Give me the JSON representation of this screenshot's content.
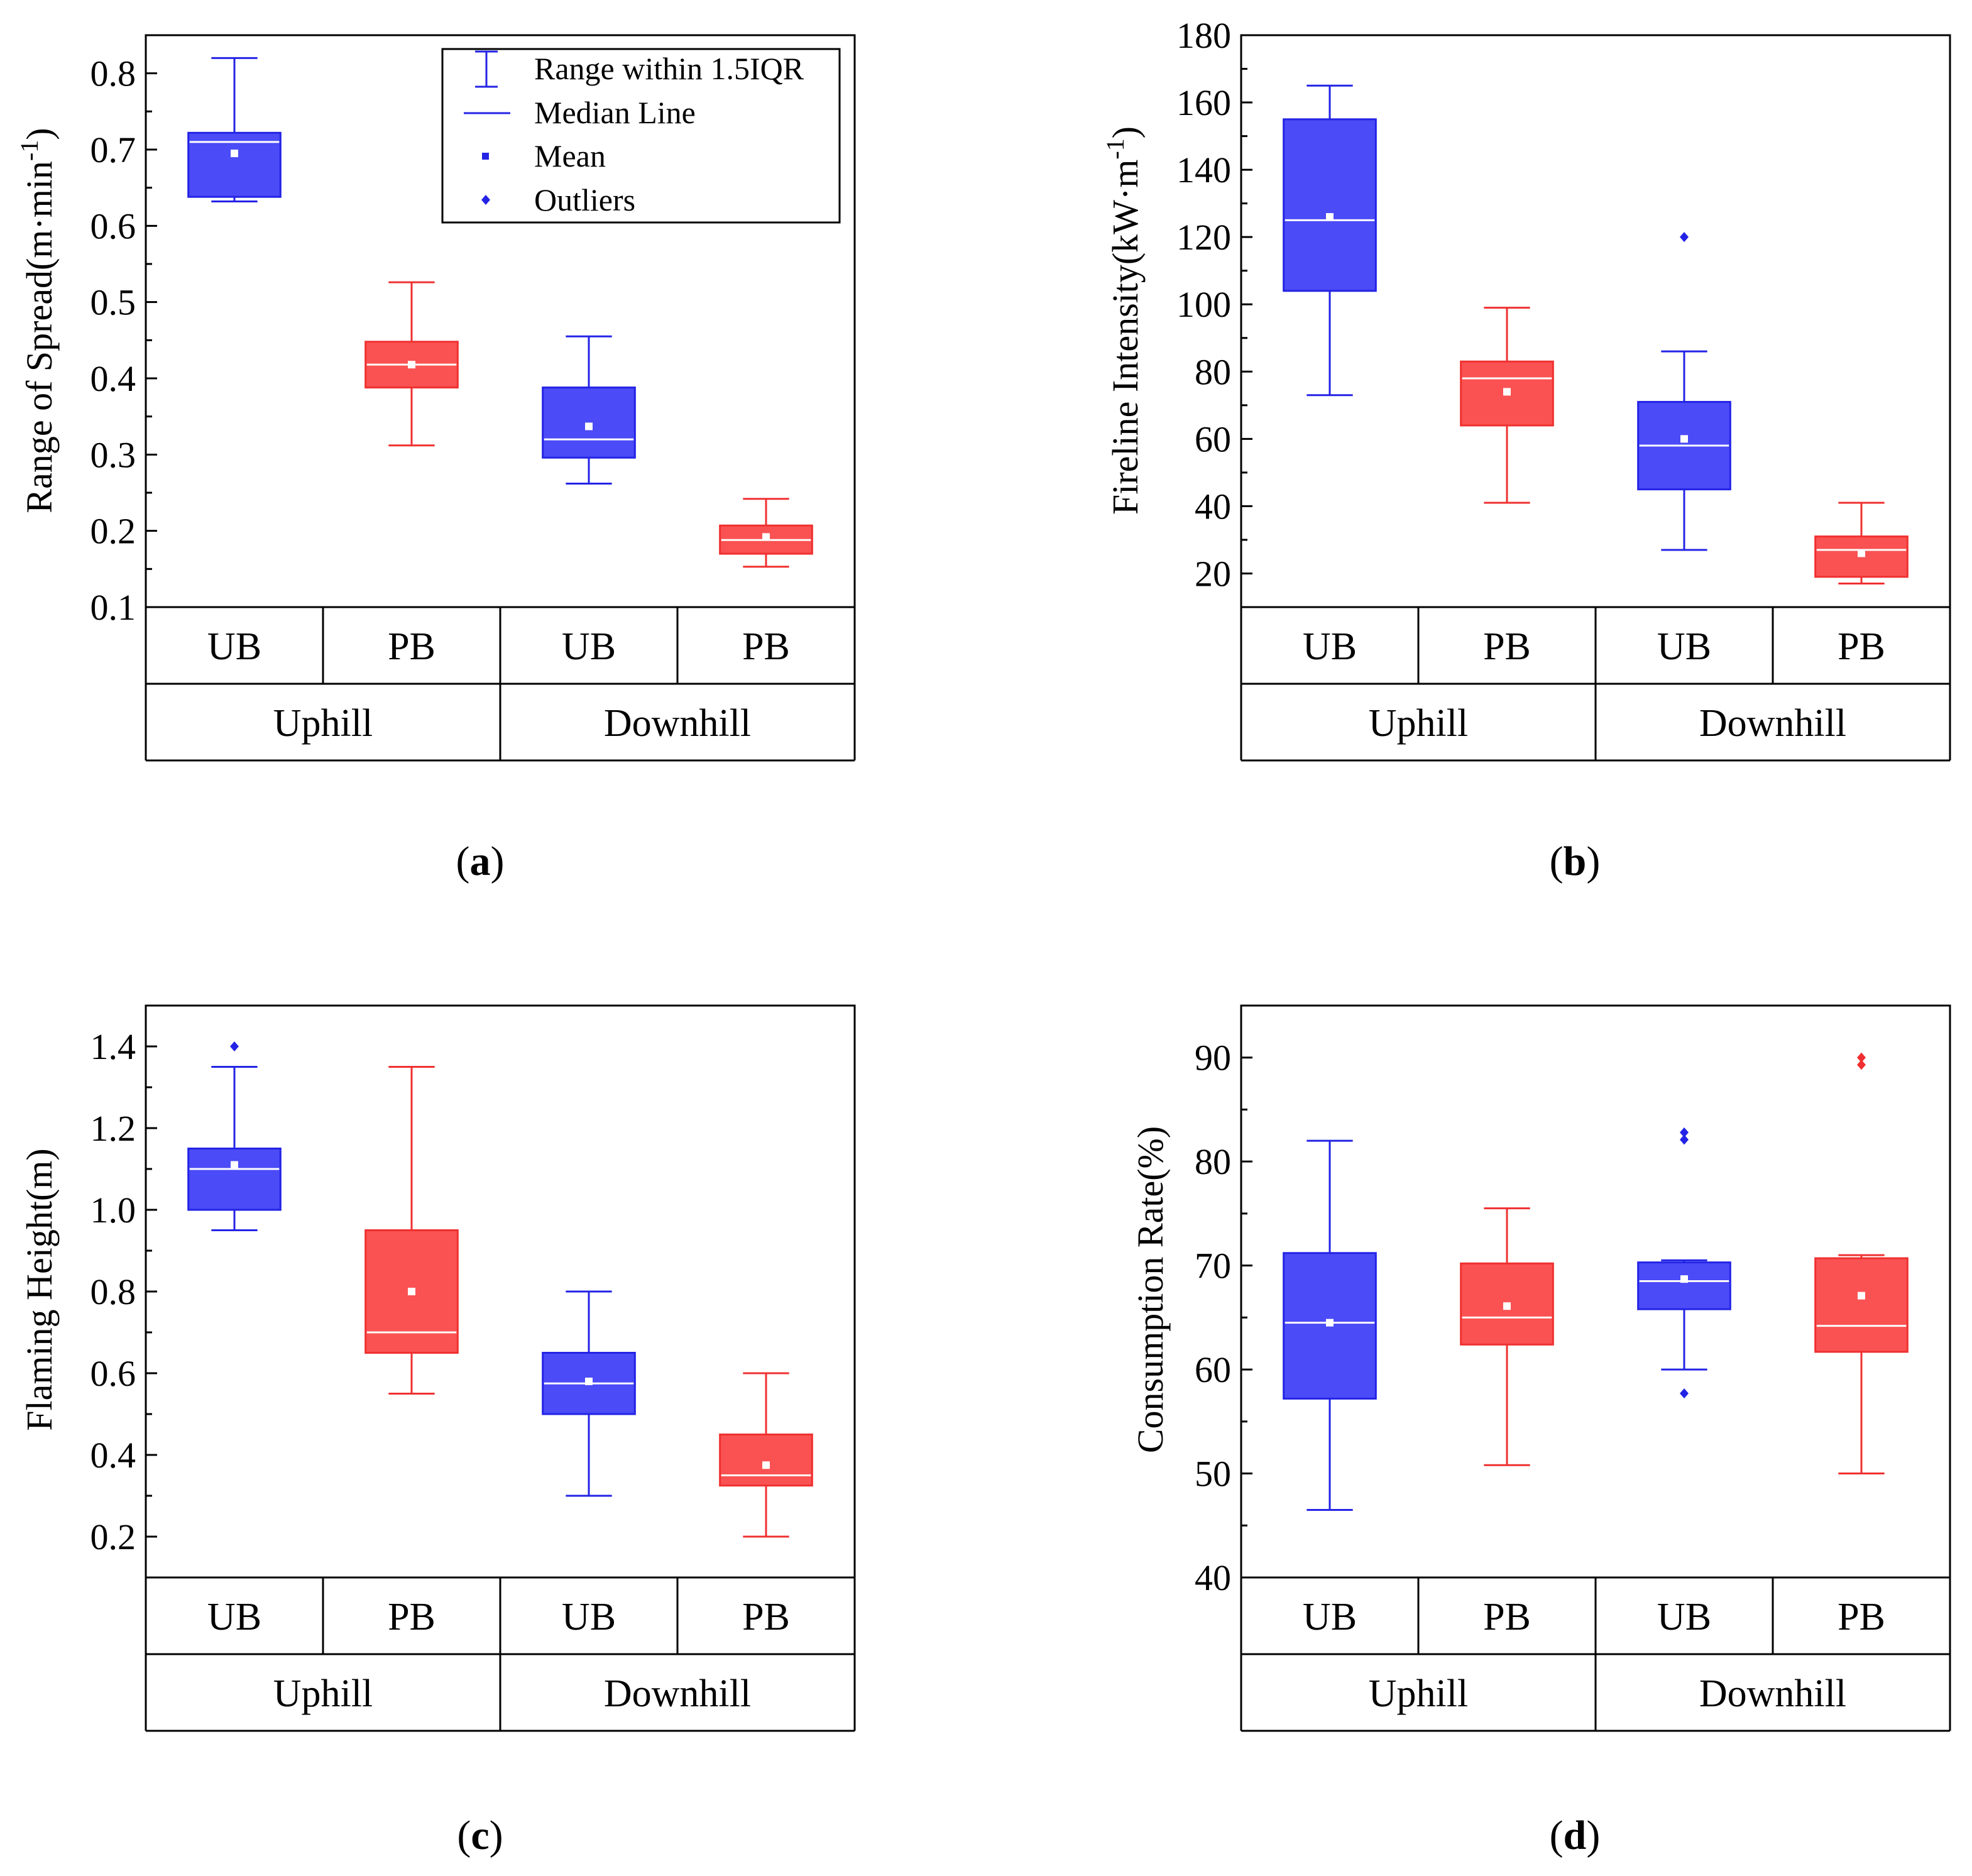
{
  "chart_data": [
    {
      "type": "box",
      "panel_label": "a",
      "ylabel": "Range of Spread(m·min",
      "ylabel_superscript": "-1",
      "ylabel_close": ")",
      "ylim": [
        0.1,
        0.85
      ],
      "yticks": [
        0.1,
        0.2,
        0.3,
        0.4,
        0.5,
        0.6,
        0.7,
        0.8
      ],
      "tick_decimals": 1,
      "groups": [
        "Uphill",
        "Downhill"
      ],
      "treatments": [
        "UB",
        "PB",
        "UB",
        "PB"
      ],
      "series": [
        {
          "group": "Uphill",
          "treatment": "UB",
          "color": "#4b4bf7",
          "whisker_low": 0.632,
          "q1": 0.638,
          "median": 0.71,
          "q3": 0.722,
          "whisker_high": 0.82,
          "mean": 0.695,
          "outliers": []
        },
        {
          "group": "Uphill",
          "treatment": "PB",
          "color": "#fa5252",
          "whisker_low": 0.312,
          "q1": 0.388,
          "median": 0.418,
          "q3": 0.448,
          "whisker_high": 0.526,
          "mean": 0.418,
          "outliers": []
        },
        {
          "group": "Downhill",
          "treatment": "UB",
          "color": "#4b4bf7",
          "whisker_low": 0.262,
          "q1": 0.296,
          "median": 0.32,
          "q3": 0.388,
          "whisker_high": 0.455,
          "mean": 0.337,
          "outliers": []
        },
        {
          "group": "Downhill",
          "treatment": "PB",
          "color": "#fa5252",
          "whisker_low": 0.153,
          "q1": 0.17,
          "median": 0.188,
          "q3": 0.207,
          "whisker_high": 0.242,
          "mean": 0.192,
          "outliers": []
        }
      ],
      "legend": {
        "placement": "top-right",
        "items": [
          {
            "symbol": "whisker",
            "label": "Range within 1.5IQR"
          },
          {
            "symbol": "line",
            "label": "Median Line"
          },
          {
            "symbol": "square",
            "label": "Mean"
          },
          {
            "symbol": "diamond",
            "label": "Outliers"
          }
        ]
      }
    },
    {
      "type": "box",
      "panel_label": "b",
      "ylabel": "Fireline Intensity(kW·m",
      "ylabel_superscript": "-1",
      "ylabel_close": ")",
      "ylim": [
        10,
        180
      ],
      "yticks": [
        20,
        40,
        60,
        80,
        100,
        120,
        140,
        160,
        180
      ],
      "tick_decimals": 0,
      "groups": [
        "Uphill",
        "Downhill"
      ],
      "treatments": [
        "UB",
        "PB",
        "UB",
        "PB"
      ],
      "series": [
        {
          "group": "Uphill",
          "treatment": "UB",
          "color": "#4b4bf7",
          "whisker_low": 73,
          "q1": 104,
          "median": 125,
          "q3": 155,
          "whisker_high": 165,
          "mean": 126,
          "outliers": []
        },
        {
          "group": "Uphill",
          "treatment": "PB",
          "color": "#fa5252",
          "whisker_low": 41,
          "q1": 64,
          "median": 78,
          "q3": 83,
          "whisker_high": 99,
          "mean": 74,
          "outliers": []
        },
        {
          "group": "Downhill",
          "treatment": "UB",
          "color": "#4b4bf7",
          "whisker_low": 27,
          "q1": 45,
          "median": 58,
          "q3": 71,
          "whisker_high": 86,
          "mean": 60,
          "outliers": [
            120
          ]
        },
        {
          "group": "Downhill",
          "treatment": "PB",
          "color": "#fa5252",
          "whisker_low": 17,
          "q1": 19,
          "median": 27,
          "q3": 31,
          "whisker_high": 41,
          "mean": 26,
          "outliers": []
        }
      ]
    },
    {
      "type": "box",
      "panel_label": "c",
      "ylabel": "Flaming Height(m)",
      "ylim": [
        0.1,
        1.5
      ],
      "yticks": [
        0.2,
        0.4,
        0.6,
        0.8,
        1.0,
        1.2,
        1.4
      ],
      "tick_decimals": 1,
      "groups": [
        "Uphill",
        "Downhill"
      ],
      "treatments": [
        "UB",
        "PB",
        "UB",
        "PB"
      ],
      "series": [
        {
          "group": "Uphill",
          "treatment": "UB",
          "color": "#4b4bf7",
          "whisker_low": 0.95,
          "q1": 1.0,
          "median": 1.1,
          "q3": 1.15,
          "whisker_high": 1.35,
          "mean": 1.11,
          "outliers": [
            1.4
          ]
        },
        {
          "group": "Uphill",
          "treatment": "PB",
          "color": "#fa5252",
          "whisker_low": 0.55,
          "q1": 0.65,
          "median": 0.7,
          "q3": 0.95,
          "whisker_high": 1.35,
          "mean": 0.8,
          "outliers": []
        },
        {
          "group": "Downhill",
          "treatment": "UB",
          "color": "#4b4bf7",
          "whisker_low": 0.3,
          "q1": 0.5,
          "median": 0.575,
          "q3": 0.65,
          "whisker_high": 0.8,
          "mean": 0.58,
          "outliers": []
        },
        {
          "group": "Downhill",
          "treatment": "PB",
          "color": "#fa5252",
          "whisker_low": 0.2,
          "q1": 0.325,
          "median": 0.35,
          "q3": 0.45,
          "whisker_high": 0.6,
          "mean": 0.375,
          "outliers": []
        }
      ]
    },
    {
      "type": "box",
      "panel_label": "d",
      "ylabel": "Consumption Rate(%)",
      "ylim": [
        40,
        95
      ],
      "yticks": [
        40,
        50,
        60,
        70,
        80,
        90
      ],
      "tick_decimals": 0,
      "groups": [
        "Uphill",
        "Downhill"
      ],
      "treatments": [
        "UB",
        "PB",
        "UB",
        "PB"
      ],
      "series": [
        {
          "group": "Uphill",
          "treatment": "UB",
          "color": "#4b4bf7",
          "whisker_low": 46.5,
          "q1": 57.2,
          "median": 64.5,
          "q3": 71.2,
          "whisker_high": 82,
          "mean": 64.5,
          "outliers": []
        },
        {
          "group": "Uphill",
          "treatment": "PB",
          "color": "#fa5252",
          "whisker_low": 50.8,
          "q1": 62.4,
          "median": 65.0,
          "q3": 70.2,
          "whisker_high": 75.5,
          "mean": 66.1,
          "outliers": []
        },
        {
          "group": "Downhill",
          "treatment": "UB",
          "color": "#4b4bf7",
          "whisker_low": 60.0,
          "q1": 65.8,
          "median": 68.5,
          "q3": 70.3,
          "whisker_high": 70.5,
          "mean": 68.7,
          "outliers": [
            57.7,
            82.1,
            82.8
          ]
        },
        {
          "group": "Downhill",
          "treatment": "PB",
          "color": "#fa5252",
          "whisker_low": 50.0,
          "q1": 61.7,
          "median": 64.2,
          "q3": 70.7,
          "whisker_high": 71.0,
          "mean": 67.1,
          "outliers": [
            89.3,
            90.0
          ]
        }
      ]
    }
  ]
}
